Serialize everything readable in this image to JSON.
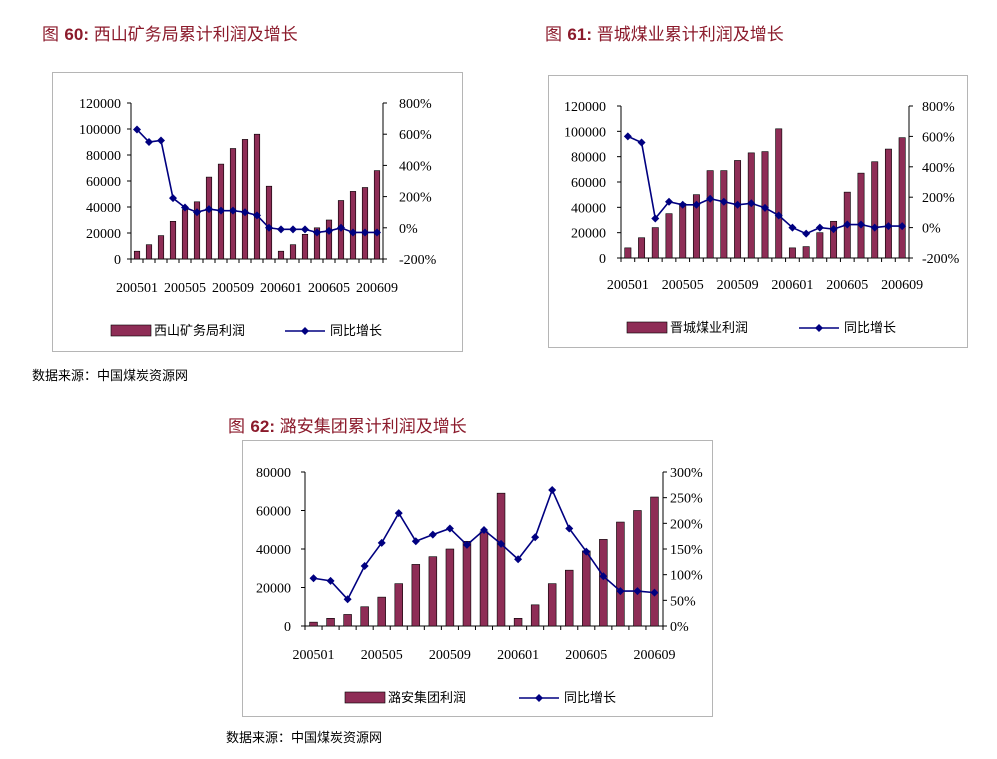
{
  "figures": [
    {
      "fig_label": "图 ",
      "fig_num": "60",
      "fig_sep": ": ",
      "title": "西山矿务局累计利润及增长",
      "source": "数据来源：中国煤炭资源网",
      "legend": {
        "bar_label": "西山矿务局利润",
        "line_label": "同比增长"
      }
    },
    {
      "fig_label": "图 ",
      "fig_num": "61",
      "fig_sep": ": ",
      "title": "晋城煤业累计利润及增长",
      "source": "",
      "legend": {
        "bar_label": "晋城煤业利润",
        "line_label": "同比增长"
      }
    },
    {
      "fig_label": "图 ",
      "fig_num": "62",
      "fig_sep": ": ",
      "title": "潞安集团累计利润及增长",
      "source": "数据来源：中国煤炭资源网",
      "legend": {
        "bar_label": "潞安集团利润",
        "line_label": "同比增长"
      }
    }
  ],
  "colors": {
    "bar": "#8e2d56",
    "line": "#000080",
    "title": "#8b1a2b"
  },
  "chart_data": [
    {
      "type": "bar",
      "categories": [
        "200501",
        "200502",
        "200503",
        "200504",
        "200505",
        "200506",
        "200507",
        "200508",
        "200509",
        "200510",
        "200511",
        "200512",
        "200601",
        "200602",
        "200603",
        "200604",
        "200605",
        "200606",
        "200607",
        "200608",
        "200609"
      ],
      "x_tick_labels": [
        "200501",
        "200505",
        "200509",
        "200601",
        "200605",
        "200609"
      ],
      "series": [
        {
          "name": "西山矿务局利润",
          "type": "bar",
          "axis": "left",
          "values": [
            6000,
            11000,
            18000,
            29000,
            38000,
            44000,
            63000,
            73000,
            85000,
            92000,
            96000,
            56000,
            6000,
            11000,
            19000,
            24000,
            30000,
            45000,
            52000,
            55000,
            68000
          ]
        },
        {
          "name": "同比增长",
          "type": "line",
          "axis": "right",
          "unit": "%",
          "values": [
            630,
            550,
            560,
            190,
            130,
            100,
            120,
            110,
            110,
            100,
            80,
            0,
            -10,
            -10,
            -10,
            -30,
            -20,
            0,
            -30,
            -30,
            -30
          ]
        }
      ],
      "y_left": {
        "min": 0,
        "max": 120000,
        "ticks": [
          "0",
          "20000",
          "40000",
          "60000",
          "80000",
          "100000",
          "120000"
        ]
      },
      "y_right": {
        "min": -200,
        "max": 800,
        "ticks": [
          "-200%",
          "0%",
          "200%",
          "400%",
          "600%",
          "800%"
        ]
      },
      "legend_position": "bottom"
    },
    {
      "type": "bar",
      "categories": [
        "200501",
        "200502",
        "200503",
        "200504",
        "200505",
        "200506",
        "200507",
        "200508",
        "200509",
        "200510",
        "200511",
        "200512",
        "200601",
        "200602",
        "200603",
        "200604",
        "200605",
        "200606",
        "200607",
        "200608",
        "200609"
      ],
      "x_tick_labels": [
        "200501",
        "200505",
        "200509",
        "200601",
        "200605",
        "200609"
      ],
      "series": [
        {
          "name": "晋城煤业利润",
          "type": "bar",
          "axis": "left",
          "values": [
            8000,
            16000,
            24000,
            35000,
            43000,
            50000,
            69000,
            69000,
            77000,
            83000,
            84000,
            102000,
            8000,
            9000,
            20000,
            29000,
            52000,
            67000,
            76000,
            86000,
            95000
          ]
        },
        {
          "name": "同比增长",
          "type": "line",
          "axis": "right",
          "unit": "%",
          "values": [
            600,
            560,
            60,
            170,
            150,
            150,
            190,
            170,
            150,
            160,
            130,
            80,
            0,
            -40,
            0,
            -10,
            20,
            20,
            0,
            10,
            10
          ]
        }
      ],
      "y_left": {
        "min": 0,
        "max": 120000,
        "ticks": [
          "0",
          "20000",
          "40000",
          "60000",
          "80000",
          "100000",
          "120000"
        ]
      },
      "y_right": {
        "min": -200,
        "max": 800,
        "ticks": [
          "-200%",
          "0%",
          "200%",
          "400%",
          "600%",
          "800%"
        ]
      },
      "legend_position": "bottom"
    },
    {
      "type": "bar",
      "categories": [
        "200501",
        "200502",
        "200503",
        "200504",
        "200505",
        "200506",
        "200507",
        "200508",
        "200509",
        "200510",
        "200511",
        "200512",
        "200601",
        "200602",
        "200603",
        "200604",
        "200605",
        "200606",
        "200607",
        "200608",
        "200609"
      ],
      "x_tick_labels": [
        "200501",
        "200505",
        "200509",
        "200601",
        "200605",
        "200609"
      ],
      "series": [
        {
          "name": "潞安集团利润",
          "type": "bar",
          "axis": "left",
          "values": [
            2000,
            4000,
            6000,
            10000,
            15000,
            22000,
            32000,
            36000,
            40000,
            44000,
            49000,
            69000,
            4000,
            11000,
            22000,
            29000,
            39000,
            45000,
            54000,
            60000,
            67000
          ]
        },
        {
          "name": "同比增长",
          "type": "line",
          "axis": "right",
          "unit": "%",
          "values": [
            93,
            88,
            52,
            117,
            162,
            220,
            165,
            178,
            190,
            158,
            187,
            160,
            130,
            173,
            265,
            190,
            145,
            97,
            68,
            68,
            65
          ]
        }
      ],
      "y_left": {
        "min": 0,
        "max": 80000,
        "ticks": [
          "0",
          "20000",
          "40000",
          "60000",
          "80000"
        ]
      },
      "y_right": {
        "min": 0,
        "max": 300,
        "ticks": [
          "0%",
          "50%",
          "100%",
          "150%",
          "200%",
          "250%",
          "300%"
        ]
      },
      "legend_position": "bottom"
    }
  ]
}
